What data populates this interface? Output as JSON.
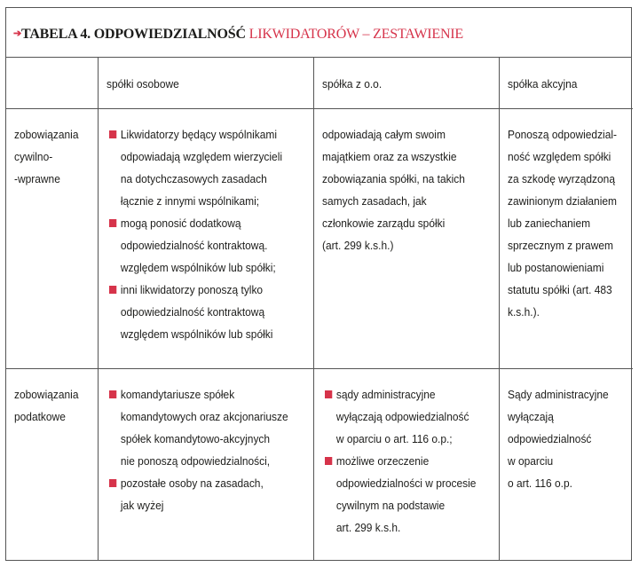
{
  "title": {
    "prefix_icon": "red-arrow-icon",
    "black": "TABELA 4. ODPOWIEDZIALNOŚĆ",
    "red": "LIKWIDATORÓW – ZESTAWIENIE",
    "accent_color": "#d6334a"
  },
  "headers": [
    "",
    "spółki osobowe",
    "spółka z o.o.",
    "spółka akcyjna"
  ],
  "rows": [
    {
      "label": [
        "zobowiązania",
        "cywilno-",
        "-wprawne"
      ],
      "osobowe": [
        [
          "Likwidatorzy będący wspólnikami",
          "odpowiadają względem wierzycieli",
          "na dotychczasowych zasadach",
          "łącznie z innymi wspólnikami;"
        ],
        [
          "mogą ponosić dodatkową",
          "odpowiedzialność kontraktową.",
          "względem wspólników lub spółki;"
        ],
        [
          "inni likwidatorzy ponoszą tylko",
          "odpowiedzialność kontraktową",
          "względem wspólników lub spółki"
        ]
      ],
      "zoo": [
        "odpowiadają całym swoim",
        "majątkiem oraz za wszystkie",
        "zobowiązania spółki, na takich",
        "samych zasadach, jak",
        "członkowie zarządu spółki",
        "(art. 299 k.s.h.)"
      ],
      "akcyjna": [
        "Ponoszą odpowiedzial-",
        "ność względem spółki",
        "za szkodę wyrządzoną",
        "zawinionym działaniem",
        "lub zaniechaniem",
        "sprzecznym z prawem",
        "lub postanowieniami",
        "statutu spółki (art. 483",
        "k.s.h.)."
      ]
    },
    {
      "label": [
        "zobowiązania",
        "podatkowe"
      ],
      "osobowe": [
        [
          "komandytariusze spółek",
          "komandytowych oraz akcjonariusze",
          "spółek komandytowo-akcyjnych",
          "nie ponoszą odpowiedzialności,"
        ],
        [
          "pozostałe osoby na zasadach,",
          "jak wyżej"
        ]
      ],
      "zoo": [
        [
          "sądy administracyjne",
          "wyłączają odpowiedzialność",
          "w oparciu o art. 116 o.p.;"
        ],
        [
          "możliwe orzeczenie",
          "odpowiedzialności w procesie",
          "cywilnym na podstawie",
          "art. 299 k.s.h."
        ]
      ],
      "akcyjna": [
        "Sądy administracyjne",
        "wyłączają",
        "odpowiedzialność",
        "w oparciu",
        "o art. 116 o.p."
      ]
    }
  ]
}
